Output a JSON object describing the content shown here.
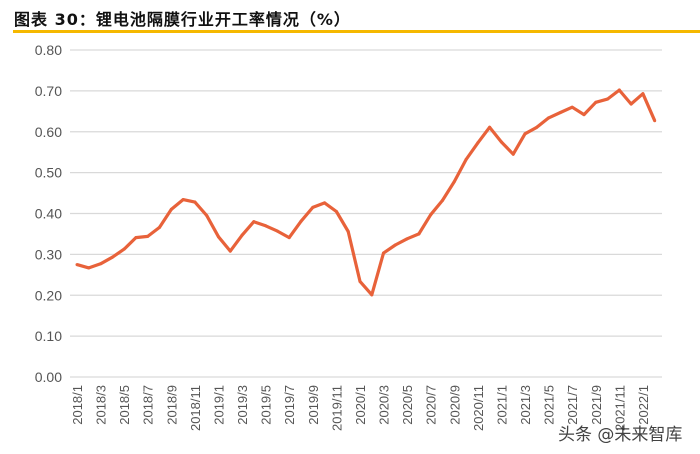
{
  "title": "图表 30：锂电池隔膜行业开工率情况（%）",
  "watermark": "头条 @未来智库",
  "chart_data": {
    "type": "line",
    "title": "图表 30：锂电池隔膜行业开工率情况（%）",
    "xlabel": "",
    "ylabel": "",
    "ylim": [
      0,
      0.8
    ],
    "yticks": [
      "0.00",
      "0.10",
      "0.20",
      "0.30",
      "0.40",
      "0.50",
      "0.60",
      "0.70",
      "0.80"
    ],
    "grid": true,
    "line_color": "#e8623a",
    "x": [
      "2018/1",
      "2018/2",
      "2018/3",
      "2018/4",
      "2018/5",
      "2018/6",
      "2018/7",
      "2018/8",
      "2018/9",
      "2018/10",
      "2018/11",
      "2018/12",
      "2019/1",
      "2019/2",
      "2019/3",
      "2019/4",
      "2019/5",
      "2019/6",
      "2019/7",
      "2019/8",
      "2019/9",
      "2019/10",
      "2019/11",
      "2019/12",
      "2020/1",
      "2020/2",
      "2020/3",
      "2020/4",
      "2020/5",
      "2020/6",
      "2020/7",
      "2020/8",
      "2020/9",
      "2020/10",
      "2020/11",
      "2020/12",
      "2021/1",
      "2021/2",
      "2021/3",
      "2021/4",
      "2021/5",
      "2021/6",
      "2021/7",
      "2021/8",
      "2021/9",
      "2021/10",
      "2021/11",
      "2021/12",
      "2022/1",
      "2022/2"
    ],
    "values": [
      0.275,
      0.267,
      0.277,
      0.293,
      0.313,
      0.341,
      0.344,
      0.366,
      0.41,
      0.434,
      0.428,
      0.395,
      0.343,
      0.308,
      0.347,
      0.38,
      0.37,
      0.357,
      0.341,
      0.381,
      0.415,
      0.426,
      0.405,
      0.356,
      0.234,
      0.201,
      0.303,
      0.323,
      0.338,
      0.35,
      0.397,
      0.432,
      0.478,
      0.532,
      0.573,
      0.611,
      0.575,
      0.545,
      0.595,
      0.611,
      0.634,
      0.647,
      0.66,
      0.642,
      0.672,
      0.68,
      0.702,
      0.668,
      0.693,
      0.627
    ],
    "xtick_labels": [
      "2018/1",
      "2018/3",
      "2018/5",
      "2018/7",
      "2018/9",
      "2018/11",
      "2019/1",
      "2019/3",
      "2019/5",
      "2019/7",
      "2019/9",
      "2019/11",
      "2020/1",
      "2020/3",
      "2020/5",
      "2020/7",
      "2020/9",
      "2020/11",
      "2021/1",
      "2021/3",
      "2021/5",
      "2021/7",
      "2021/9",
      "2021/11",
      "2022/1"
    ]
  }
}
